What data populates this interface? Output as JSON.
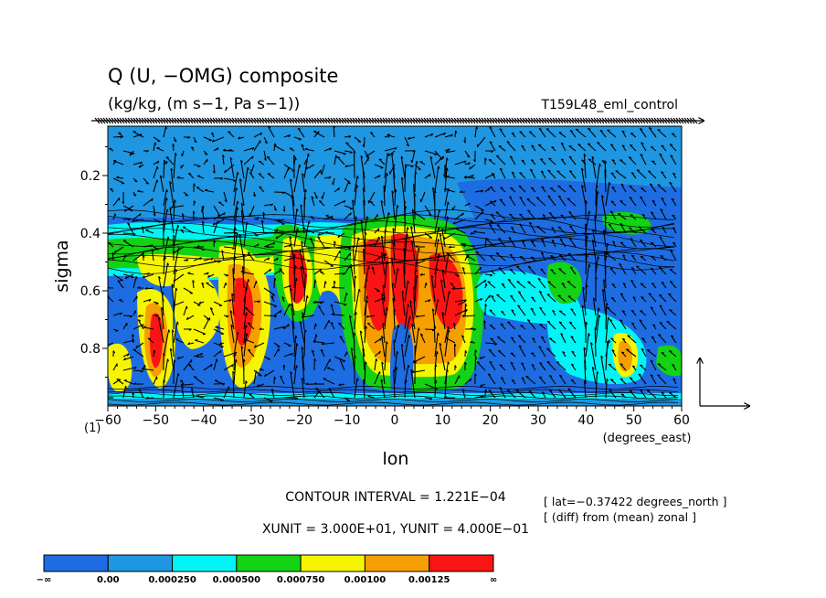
{
  "header": {
    "title": "Q (U, −OMG) composite",
    "units": "(kg/kg, (m s−1, Pa s−1))",
    "experiment": "T159L48_eml_control"
  },
  "chart_data": {
    "type": "heatmap",
    "subtype": "shaded contour with vector overlay (longitude-sigma cross section)",
    "xlabel": "lon",
    "ylabel": "sigma",
    "x_units": "(degrees_east)",
    "y_corner_label": "(1)",
    "xlim": [
      -60,
      60
    ],
    "ylim": [
      1.0,
      0.05
    ],
    "y_axis_inverted": true,
    "x_ticks": [
      "−60",
      "−50",
      "−40",
      "−30",
      "−20",
      "−10",
      "0",
      "10",
      "20",
      "30",
      "40",
      "50",
      "60"
    ],
    "x_tick_values": [
      -60,
      -50,
      -40,
      -30,
      -20,
      -10,
      0,
      10,
      20,
      30,
      40,
      50,
      60
    ],
    "y_ticks": [
      "0.2",
      "0.4",
      "0.6",
      "0.8"
    ],
    "y_tick_values": [
      0.2,
      0.4,
      0.6,
      0.8
    ],
    "contour_interval_text": "CONTOUR INTERVAL = 1.221E−04",
    "vector_units_text": "XUNIT = 3.000E+01, YUNIT = 4.000E−01",
    "notes": [
      "[ lat=−0.37422 degrees_north ]",
      "[ (diff) from (mean) zonal ]"
    ],
    "colorbar": {
      "tick_labels": [
        "−∞",
        "0.00",
        "0.000250",
        "0.000500",
        "0.000750",
        "0.00100",
        "0.00125",
        "∞"
      ],
      "colors": [
        "#1e6ce1",
        "#1e96e1",
        "#00f5f5",
        "#14d214",
        "#f5f500",
        "#f5a000",
        "#fa1414"
      ]
    },
    "features": [
      {
        "lon": -48,
        "sigma": 0.72,
        "level": "red"
      },
      {
        "lon": -33,
        "sigma": 0.62,
        "level": "red"
      },
      {
        "lon": -20,
        "sigma": 0.55,
        "level": "red"
      },
      {
        "lon": -2,
        "sigma": 0.5,
        "level": "red"
      },
      {
        "lon": 4,
        "sigma": 0.52,
        "level": "red"
      },
      {
        "lon": 10,
        "sigma": 0.58,
        "level": "red"
      },
      {
        "lon": 46,
        "sigma": 0.85,
        "level": "yellow"
      }
    ]
  }
}
